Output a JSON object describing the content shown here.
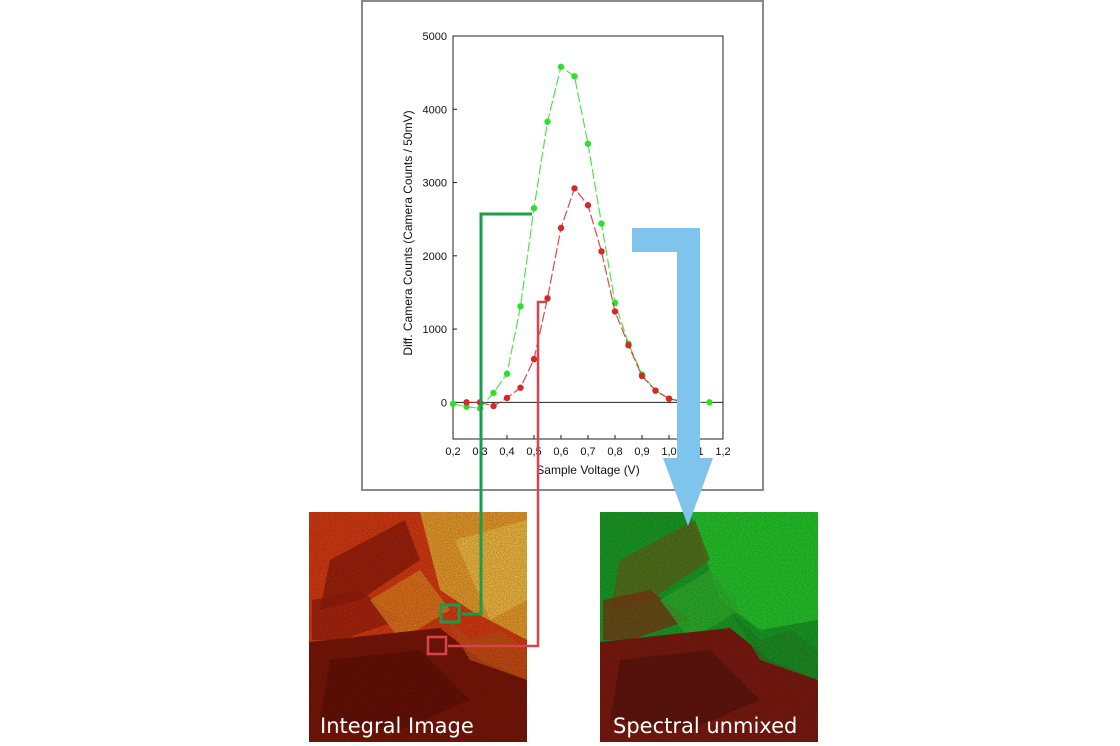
{
  "chart_data": {
    "type": "line",
    "title": "",
    "xlabel": "Sample Voltage (V)",
    "ylabel": "Diff. Camera Counts (Camera Counts / 50mV)",
    "xlim": [
      0.2,
      1.2
    ],
    "ylim": [
      -500,
      5000
    ],
    "x_ticks": [
      "0,2",
      "0,3",
      "0,4",
      "0,5",
      "0,6",
      "0,7",
      "0,8",
      "0,9",
      "1,0",
      "1,1",
      "1,2"
    ],
    "y_ticks": [
      "0",
      "1000",
      "2000",
      "3000",
      "4000",
      "5000"
    ],
    "grid": false,
    "legend": "none",
    "series": [
      {
        "color": "#2ee02e",
        "x": [
          0.2,
          0.25,
          0.3,
          0.35,
          0.4,
          0.45,
          0.5,
          0.55,
          0.6,
          0.65,
          0.7,
          0.75,
          0.8,
          0.85,
          0.9,
          0.95,
          1.0,
          1.05,
          1.1,
          1.15
        ],
        "y": [
          -20,
          -60,
          -80,
          130,
          390,
          1310,
          2650,
          3830,
          4580,
          4450,
          3530,
          2440,
          1360,
          800,
          380,
          160,
          50,
          10,
          0,
          0
        ]
      },
      {
        "color": "#d62828",
        "x": [
          0.25,
          0.3,
          0.35,
          0.4,
          0.45,
          0.5,
          0.55,
          0.6,
          0.65,
          0.7,
          0.75,
          0.8,
          0.85,
          0.9,
          0.95,
          1.0,
          1.05,
          1.1
        ],
        "y": [
          0,
          0,
          -50,
          60,
          200,
          590,
          1420,
          2380,
          2920,
          2690,
          2060,
          1240,
          780,
          360,
          160,
          50,
          10,
          0
        ]
      }
    ]
  },
  "colors": {
    "green_marker": "#1a9c4a",
    "red_marker": "#d9434a",
    "arrow": "#7ec4ec"
  },
  "images": {
    "left_caption": "Integral Image",
    "right_caption": "Spectral unmixed"
  }
}
